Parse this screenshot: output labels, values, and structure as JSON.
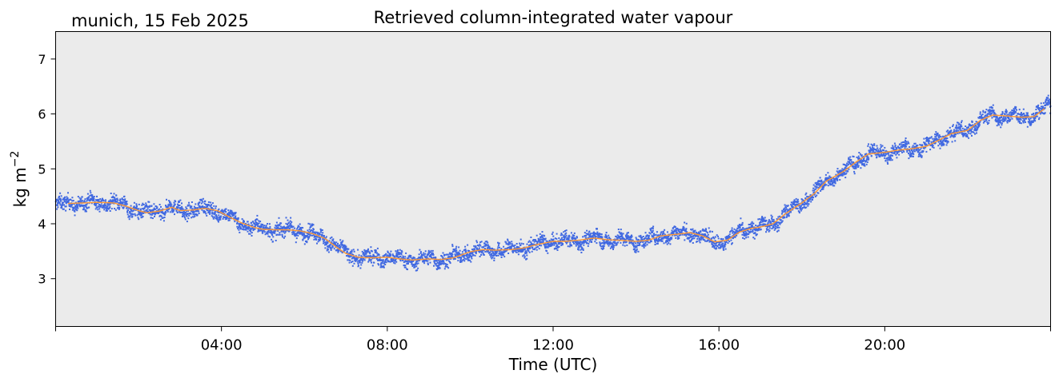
{
  "chart_data": {
    "type": "scatter",
    "title": "Retrieved column-integrated water vapour",
    "subtitle": "munich, 15 Feb 2025",
    "xlabel": "Time (UTC)",
    "ylabel_main": "kg m",
    "ylabel_sup": "−2",
    "xlim_hours": [
      0,
      24
    ],
    "ylim": [
      2.13,
      7.5
    ],
    "x_ticks": [
      {
        "hour": 0,
        "label": ""
      },
      {
        "hour": 4,
        "label": "04:00"
      },
      {
        "hour": 8,
        "label": "08:00"
      },
      {
        "hour": 12,
        "label": "12:00"
      },
      {
        "hour": 16,
        "label": "16:00"
      },
      {
        "hour": 20,
        "label": "20:00"
      },
      {
        "hour": 24,
        "label": ""
      }
    ],
    "y_ticks": [
      3,
      4,
      5,
      6,
      7
    ],
    "grid": false,
    "plot_background": "#ebebeb",
    "series": [
      {
        "role": "raw retrievals (scatter)",
        "color": "#4169e1",
        "spread": 0.13
      },
      {
        "role": "smoothed mean (line)",
        "color": "#ff9933"
      }
    ],
    "smooth_curve": {
      "x": [
        0.0,
        0.3,
        0.7,
        1.0,
        1.4,
        1.7,
        2.0,
        2.2,
        2.5,
        2.8,
        3.0,
        3.3,
        3.6,
        3.9,
        4.2,
        4.5,
        4.8,
        5.0,
        5.3,
        5.6,
        5.9,
        6.2,
        6.5,
        6.8,
        7.0,
        7.3,
        7.6,
        8.0,
        8.3,
        8.6,
        9.0,
        9.3,
        9.6,
        10.0,
        10.3,
        10.6,
        11.0,
        11.3,
        11.6,
        12.0,
        12.3,
        12.6,
        13.0,
        13.3,
        13.6,
        14.0,
        14.3,
        14.6,
        15.0,
        15.3,
        15.6,
        15.9,
        16.2,
        16.5,
        16.8,
        17.0,
        17.3,
        17.6,
        18.0,
        18.3,
        18.6,
        19.0,
        19.3,
        19.6,
        20.0,
        20.3,
        20.6,
        21.0,
        21.3,
        21.6,
        22.0,
        22.3,
        22.6,
        23.0,
        23.3,
        23.6,
        24.0
      ],
      "y": [
        4.33,
        4.37,
        4.38,
        4.39,
        4.38,
        4.32,
        4.24,
        4.2,
        4.23,
        4.3,
        4.24,
        4.25,
        4.28,
        4.24,
        4.12,
        4.01,
        3.93,
        3.9,
        3.89,
        3.89,
        3.87,
        3.82,
        3.73,
        3.56,
        3.46,
        3.39,
        3.38,
        3.39,
        3.36,
        3.34,
        3.36,
        3.35,
        3.38,
        3.49,
        3.53,
        3.52,
        3.53,
        3.56,
        3.62,
        3.68,
        3.68,
        3.7,
        3.74,
        3.71,
        3.7,
        3.68,
        3.7,
        3.78,
        3.81,
        3.84,
        3.78,
        3.67,
        3.7,
        3.85,
        3.92,
        3.94,
        4.0,
        4.18,
        4.38,
        4.55,
        4.78,
        4.95,
        5.12,
        5.27,
        5.3,
        5.34,
        5.36,
        5.41,
        5.52,
        5.64,
        5.7,
        5.88,
        5.98,
        5.96,
        5.94,
        5.95,
        6.18
      ]
    }
  }
}
